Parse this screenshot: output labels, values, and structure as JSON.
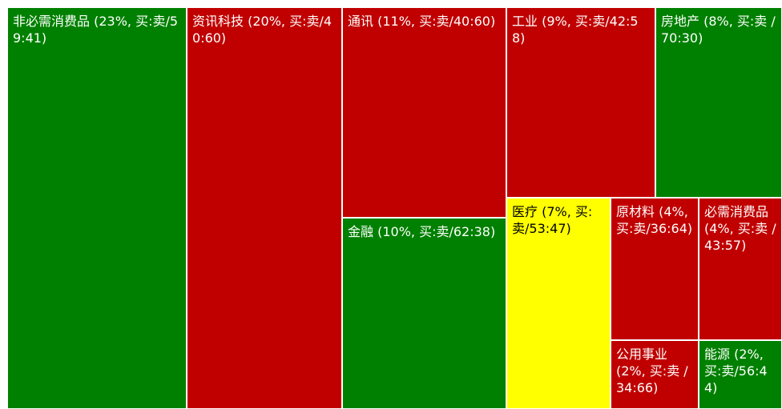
{
  "chart_data": {
    "type": "treemap",
    "title": "",
    "colors": {
      "buy": "#008000",
      "sell": "#c00000",
      "neutral": "#ffff00",
      "border": "#ffffff",
      "text_on_dark": "#ffffff",
      "text_on_light": "#000000"
    },
    "items": [
      {
        "name": "非必需消费品",
        "weight_pct": 23,
        "buy": 59,
        "sell": 41,
        "color": "buy",
        "label": "非必需消费品 (23%, 买:卖/59:41)"
      },
      {
        "name": "资讯科技",
        "weight_pct": 20,
        "buy": 40,
        "sell": 60,
        "color": "sell",
        "label": "资讯科技 (20%, 买:卖/40:60)"
      },
      {
        "name": "通讯",
        "weight_pct": 11,
        "buy": 40,
        "sell": 60,
        "color": "sell",
        "label": "通讯 (11%, 买:卖/40:60)"
      },
      {
        "name": "金融",
        "weight_pct": 10,
        "buy": 62,
        "sell": 38,
        "color": "buy",
        "label": "金融 (10%, 买:卖/62:38)"
      },
      {
        "name": "工业",
        "weight_pct": 9,
        "buy": 42,
        "sell": 58,
        "color": "sell",
        "label": "工业 (9%, 买:卖/42:58)"
      },
      {
        "name": "房地产",
        "weight_pct": 8,
        "buy": 70,
        "sell": 30,
        "color": "buy",
        "label": "房地产 (8%, 买:卖 /70:30)"
      },
      {
        "name": "医疗",
        "weight_pct": 7,
        "buy": 53,
        "sell": 47,
        "color": "neutral",
        "label": "医疗 (7%, 买:卖/53:47)"
      },
      {
        "name": "原材料",
        "weight_pct": 4,
        "buy": 36,
        "sell": 64,
        "color": "sell",
        "label": "原材料 (4%, 买:卖/36:64)"
      },
      {
        "name": "必需消费品",
        "weight_pct": 4,
        "buy": 43,
        "sell": 57,
        "color": "sell",
        "label": "必需消费品 (4%, 买:卖 /43:57)"
      },
      {
        "name": "公用事业",
        "weight_pct": 2,
        "buy": 34,
        "sell": 66,
        "color": "sell",
        "label": "公用事业 (2%, 买:卖 /34:66)"
      },
      {
        "name": "能源",
        "weight_pct": 2,
        "buy": 56,
        "sell": 44,
        "color": "buy",
        "label": "能源 (2%, 买:卖/56:44)"
      }
    ]
  }
}
